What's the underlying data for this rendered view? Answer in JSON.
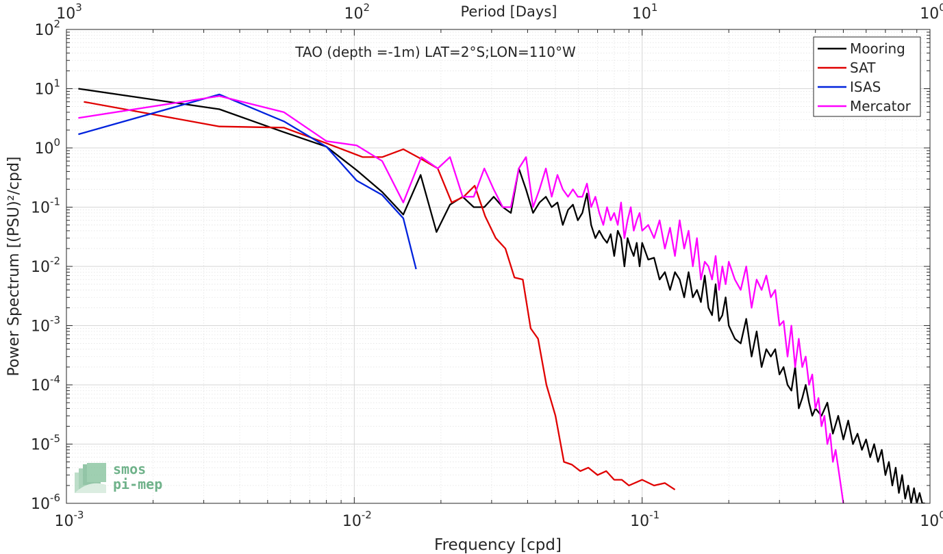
{
  "chart_data": {
    "type": "line",
    "title": "TAO (depth =-1m) LAT=2°S;LON=110°W",
    "xlabel": "Frequency [cpd]",
    "ylabel": "Power Spectrum [(PSU)²/cpd]",
    "top_xlabel": "Period [Days]",
    "x_scale": "log",
    "y_scale": "log",
    "xlim": [
      0.001,
      1
    ],
    "ylim": [
      1e-06,
      100
    ],
    "top_xlim": [
      1000,
      1
    ],
    "grid": true,
    "legend_position": "top-right",
    "x_ticks": [
      {
        "value": 0.001,
        "base": "10",
        "exp": "-3"
      },
      {
        "value": 0.01,
        "base": "10",
        "exp": "-2"
      },
      {
        "value": 0.1,
        "base": "10",
        "exp": "-1"
      },
      {
        "value": 1,
        "base": "10",
        "exp": "0"
      }
    ],
    "top_ticks": [
      {
        "value": 1000,
        "base": "10",
        "exp": "3"
      },
      {
        "value": 100,
        "base": "10",
        "exp": "2"
      },
      {
        "value": 10,
        "base": "10",
        "exp": "1"
      },
      {
        "value": 1,
        "base": "10",
        "exp": "0"
      }
    ],
    "y_ticks": [
      {
        "value": 1e-06,
        "base": "10",
        "exp": "-6"
      },
      {
        "value": 1e-05,
        "base": "10",
        "exp": "-5"
      },
      {
        "value": 0.0001,
        "base": "10",
        "exp": "-4"
      },
      {
        "value": 0.001,
        "base": "10",
        "exp": "-3"
      },
      {
        "value": 0.01,
        "base": "10",
        "exp": "-2"
      },
      {
        "value": 0.1,
        "base": "10",
        "exp": "-1"
      },
      {
        "value": 1,
        "base": "10",
        "exp": "0"
      },
      {
        "value": 10,
        "base": "10",
        "exp": "1"
      },
      {
        "value": 100,
        "base": "10",
        "exp": "2"
      }
    ],
    "series": [
      {
        "name": "Mooring",
        "color": "#000000",
        "x": [
          0.0011,
          0.0034,
          0.0056,
          0.008,
          0.0102,
          0.0125,
          0.0148,
          0.017,
          0.0193,
          0.0215,
          0.0238,
          0.026,
          0.0283,
          0.0305,
          0.0328,
          0.035,
          0.0373,
          0.0395,
          0.0418,
          0.044,
          0.0463,
          0.0485,
          0.0508,
          0.053,
          0.0553,
          0.0575,
          0.0598,
          0.062,
          0.0643,
          0.0665,
          0.0688,
          0.071,
          0.0733,
          0.0755,
          0.0778,
          0.08,
          0.0823,
          0.0845,
          0.0868,
          0.089,
          0.0913,
          0.0935,
          0.0958,
          0.098,
          0.1,
          0.105,
          0.11,
          0.115,
          0.12,
          0.125,
          0.13,
          0.135,
          0.14,
          0.145,
          0.15,
          0.155,
          0.16,
          0.165,
          0.17,
          0.175,
          0.18,
          0.185,
          0.19,
          0.195,
          0.2,
          0.21,
          0.22,
          0.23,
          0.24,
          0.25,
          0.26,
          0.27,
          0.28,
          0.29,
          0.3,
          0.31,
          0.32,
          0.33,
          0.34,
          0.35,
          0.36,
          0.37,
          0.38,
          0.39,
          0.4,
          0.42,
          0.44,
          0.46,
          0.48,
          0.5,
          0.52,
          0.54,
          0.56,
          0.58,
          0.6,
          0.62,
          0.64,
          0.66,
          0.68,
          0.7,
          0.72,
          0.74,
          0.76,
          0.78,
          0.8,
          0.82,
          0.84,
          0.86,
          0.88,
          0.9,
          0.92,
          0.94,
          0.96
        ],
        "y": [
          10,
          4.5,
          1.9,
          1.05,
          0.42,
          0.18,
          0.075,
          0.35,
          0.038,
          0.11,
          0.15,
          0.1,
          0.1,
          0.15,
          0.1,
          0.08,
          0.45,
          0.2,
          0.08,
          0.12,
          0.15,
          0.1,
          0.12,
          0.05,
          0.09,
          0.11,
          0.06,
          0.08,
          0.17,
          0.05,
          0.03,
          0.04,
          0.03,
          0.025,
          0.035,
          0.015,
          0.04,
          0.03,
          0.01,
          0.03,
          0.02,
          0.015,
          0.025,
          0.01,
          0.025,
          0.013,
          0.014,
          0.006,
          0.008,
          0.004,
          0.008,
          0.006,
          0.003,
          0.008,
          0.003,
          0.004,
          0.0025,
          0.007,
          0.002,
          0.0015,
          0.005,
          0.0012,
          0.0015,
          0.003,
          0.001,
          0.0006,
          0.0005,
          0.0013,
          0.0003,
          0.0008,
          0.0002,
          0.0004,
          0.0003,
          0.0004,
          0.00015,
          0.0002,
          0.0001,
          8e-05,
          0.0002,
          4e-05,
          6e-05,
          0.0001,
          5e-05,
          3e-05,
          4e-05,
          3e-05,
          5e-05,
          1.5e-05,
          3e-05,
          1.2e-05,
          2.5e-05,
          1e-05,
          1.5e-05,
          8e-06,
          1.2e-05,
          6e-06,
          1e-05,
          5e-06,
          8e-06,
          3e-06,
          5e-06,
          2e-06,
          4e-06,
          1.5e-06,
          3e-06,
          1.2e-06,
          2e-06,
          1e-06,
          1.8e-06,
          1e-06,
          1.5e-06,
          1e-06,
          1e-06
        ]
      },
      {
        "name": "SAT",
        "color": "#e00000",
        "x": [
          0.00115,
          0.0034,
          0.0057,
          0.008,
          0.0107,
          0.0125,
          0.0148,
          0.0171,
          0.0195,
          0.0218,
          0.024,
          0.0262,
          0.0285,
          0.031,
          0.0335,
          0.036,
          0.0385,
          0.041,
          0.0435,
          0.0465,
          0.05,
          0.0535,
          0.057,
          0.061,
          0.065,
          0.07,
          0.075,
          0.08,
          0.085,
          0.09,
          0.1,
          0.11,
          0.12,
          0.13
        ],
        "y": [
          6,
          2.3,
          2.2,
          1.2,
          0.7,
          0.7,
          0.95,
          0.65,
          0.45,
          0.12,
          0.15,
          0.23,
          0.07,
          0.03,
          0.02,
          0.0065,
          0.006,
          0.0009,
          0.0006,
          0.0001,
          3e-05,
          5e-06,
          4.5e-06,
          3.5e-06,
          4e-06,
          3e-06,
          3.5e-06,
          2.5e-06,
          2.5e-06,
          2e-06,
          2.5e-06,
          2e-06,
          2.2e-06,
          1.7e-06
        ]
      },
      {
        "name": "ISAS",
        "color": "#0022dd",
        "x": [
          0.0011,
          0.0034,
          0.0057,
          0.008,
          0.0102,
          0.0125,
          0.0148,
          0.0164
        ],
        "y": [
          1.7,
          8,
          2.8,
          1.05,
          0.28,
          0.16,
          0.065,
          0.009
        ]
      },
      {
        "name": "Mercator",
        "color": "#ff00ff",
        "x": [
          0.0011,
          0.0034,
          0.0057,
          0.008,
          0.0102,
          0.0125,
          0.0148,
          0.0171,
          0.0195,
          0.0215,
          0.0238,
          0.026,
          0.0283,
          0.0305,
          0.0328,
          0.035,
          0.0373,
          0.0395,
          0.0418,
          0.044,
          0.0463,
          0.0485,
          0.0508,
          0.053,
          0.0553,
          0.0575,
          0.0598,
          0.062,
          0.0643,
          0.0665,
          0.0688,
          0.071,
          0.0733,
          0.0755,
          0.0778,
          0.08,
          0.0823,
          0.0845,
          0.0868,
          0.089,
          0.0913,
          0.0935,
          0.0958,
          0.098,
          0.1,
          0.105,
          0.11,
          0.115,
          0.12,
          0.125,
          0.13,
          0.135,
          0.14,
          0.145,
          0.15,
          0.155,
          0.16,
          0.165,
          0.17,
          0.175,
          0.18,
          0.185,
          0.19,
          0.195,
          0.2,
          0.21,
          0.22,
          0.23,
          0.24,
          0.25,
          0.26,
          0.27,
          0.28,
          0.29,
          0.3,
          0.31,
          0.32,
          0.33,
          0.34,
          0.35,
          0.36,
          0.37,
          0.38,
          0.39,
          0.4,
          0.41,
          0.42,
          0.43,
          0.44,
          0.45,
          0.46,
          0.47,
          0.48,
          0.49,
          0.5
        ],
        "y": [
          3.2,
          7.5,
          4,
          1.3,
          1.1,
          0.6,
          0.12,
          0.7,
          0.45,
          0.7,
          0.15,
          0.15,
          0.45,
          0.2,
          0.1,
          0.1,
          0.45,
          0.7,
          0.1,
          0.2,
          0.45,
          0.15,
          0.35,
          0.2,
          0.15,
          0.2,
          0.15,
          0.15,
          0.25,
          0.1,
          0.15,
          0.08,
          0.05,
          0.1,
          0.06,
          0.08,
          0.05,
          0.12,
          0.03,
          0.06,
          0.1,
          0.04,
          0.06,
          0.08,
          0.04,
          0.05,
          0.03,
          0.06,
          0.02,
          0.045,
          0.015,
          0.06,
          0.02,
          0.04,
          0.01,
          0.03,
          0.006,
          0.012,
          0.01,
          0.006,
          0.015,
          0.004,
          0.01,
          0.005,
          0.012,
          0.006,
          0.004,
          0.01,
          0.002,
          0.006,
          0.004,
          0.007,
          0.003,
          0.004,
          0.001,
          0.0012,
          0.0003,
          0.001,
          0.0002,
          0.0006,
          0.0002,
          0.0003,
          0.0001,
          0.00015,
          4e-05,
          6e-05,
          2e-05,
          3e-05,
          1e-05,
          1.5e-05,
          5e-06,
          8e-06,
          4e-06,
          2e-06,
          1e-06
        ]
      }
    ]
  },
  "watermark": {
    "line1": "smos",
    "line2": "pi-mep"
  }
}
